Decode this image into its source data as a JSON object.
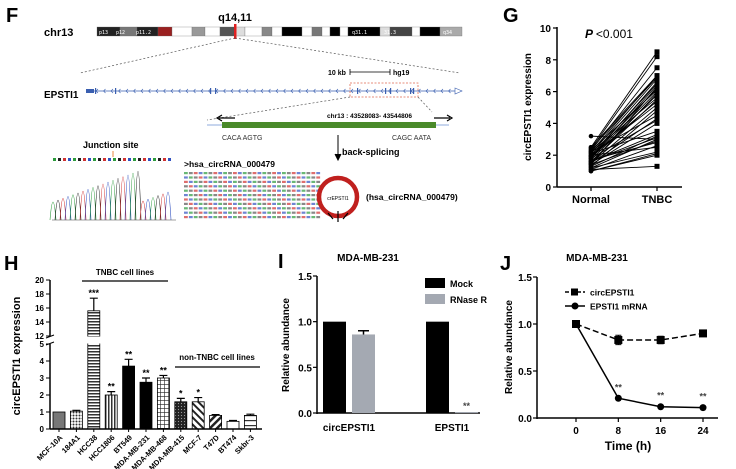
{
  "panel_labels": {
    "f": "F",
    "g": "G",
    "h": "H",
    "i": "I",
    "j": "J"
  },
  "panel_f": {
    "chrom_label": "chr13",
    "locus": "q14,11",
    "bands": [
      "p13",
      "p12",
      "p11.2",
      "q31.1",
      "31.3",
      "q34"
    ],
    "gene": "EPSTI1",
    "scale_label": "10 kb",
    "assembly": "hg19",
    "coords": "chr13 : 43528083- 43544806",
    "left_junction": "CACA AGTG",
    "right_junction": "CAGC AATA",
    "back_splicing": "back-splicing",
    "junction_site": "Junction site",
    "seq_header": ">hsa_circRNA_000479",
    "circ_label": "crEPSTI1",
    "circ_id": "(hsa_circRNA_000479)",
    "colors": {
      "exon": "#4a8a2a",
      "gene": "#3a5fb0",
      "circ": "#c0201e",
      "locus": "#e02020"
    }
  },
  "chart_data": [
    {
      "id": "G",
      "type": "paired-scatter",
      "title": "P <0.001",
      "ylabel": "circEPSTI1 expression",
      "categories": [
        "Normal",
        "TNBC"
      ],
      "ylim": [
        0,
        10
      ],
      "yticks": [
        "0",
        "2",
        "4",
        "6",
        "8",
        "10"
      ],
      "normal": [
        1.0,
        1.1,
        1.2,
        1.3,
        1.4,
        1.5,
        1.5,
        1.6,
        1.7,
        1.8,
        1.9,
        2.0,
        2.1,
        2.2,
        2.3,
        2.4,
        2.5,
        1.2,
        1.6,
        1.8,
        2.0,
        2.2,
        1.4,
        1.9,
        2.4,
        1.1,
        1.7,
        2.1,
        3.2,
        1.3,
        1.5,
        2.3,
        1.8,
        2.0,
        1.6,
        1.0,
        2.5,
        1.9,
        1.4,
        2.2
      ],
      "tnbc": [
        2.0,
        2.6,
        3.0,
        3.2,
        4.0,
        4.3,
        5.0,
        5.5,
        5.8,
        6.0,
        6.2,
        6.5,
        6.8,
        7.0,
        7.5,
        8.2,
        8.5,
        2.2,
        3.1,
        4.2,
        5.2,
        5.6,
        6.3,
        6.6,
        6.9,
        1.3,
        2.8,
        3.5,
        3.0,
        4.8,
        5.9,
        6.1,
        6.4,
        2.5,
        3.3,
        2.1,
        7.0,
        5.4,
        2.9,
        4.5
      ]
    },
    {
      "id": "H",
      "type": "bar",
      "ylabel": "circEPSTI1 expression",
      "categories": [
        "MCF-10A",
        "184A1",
        "HCC38",
        "HCC1806",
        "BT549",
        "MDA-MB-231",
        "MDA-MB-468",
        "MDA-MB-415",
        "MCF-7",
        "T47D",
        "BT474",
        "Skbr-3"
      ],
      "values": [
        1.0,
        1.05,
        15.6,
        2.0,
        3.7,
        2.75,
        3.0,
        1.6,
        1.6,
        0.8,
        0.45,
        0.8
      ],
      "errors": [
        0,
        0.05,
        1.8,
        0.2,
        0.4,
        0.25,
        0.15,
        0.2,
        0.25,
        0.05,
        0.05,
        0.07
      ],
      "significance": [
        "",
        "",
        "***",
        "**",
        "**",
        "**",
        "**",
        "*",
        "*",
        "",
        "",
        ""
      ],
      "yticks_lower": [
        "0",
        "1",
        "2",
        "3",
        "4",
        "5"
      ],
      "yticks_upper": [
        "12",
        "14",
        "16",
        "18",
        "20"
      ],
      "ylim": [
        0,
        20
      ],
      "axis_break": [
        5,
        12
      ],
      "group_labels": {
        "tnbc": "TNBC cell lines",
        "non_tnbc": "non-TNBC cell lines"
      }
    },
    {
      "id": "I",
      "type": "bar",
      "title": "MDA-MB-231",
      "ylabel": "Relative abundance",
      "categories": [
        "circEPSTI1",
        "EPSTI1"
      ],
      "series": [
        {
          "name": "Mock",
          "values": [
            1.0,
            1.0
          ],
          "errors": [
            0,
            0
          ],
          "color": "#000000"
        },
        {
          "name": "RNase R",
          "values": [
            0.86,
            0.01
          ],
          "errors": [
            0.04,
            0
          ],
          "color": "#a4a9b2"
        }
      ],
      "significance": [
        "",
        "**"
      ],
      "ylim": [
        0,
        1.5
      ],
      "yticks": [
        "0.0",
        "0.5",
        "1.0",
        "1.5"
      ],
      "legend": "top-right"
    },
    {
      "id": "J",
      "type": "line",
      "title": "MDA-MB-231",
      "xlabel": "Time (h)",
      "ylabel": "Relative abundance",
      "x": [
        0,
        8,
        16,
        24
      ],
      "xticks": [
        "0",
        "8",
        "16",
        "24"
      ],
      "series": [
        {
          "name": "circEPSTI1",
          "values": [
            1.0,
            0.83,
            0.83,
            0.9
          ],
          "errors": [
            0,
            0.05,
            0.04,
            0.03
          ],
          "style": "dashed",
          "marker": "square"
        },
        {
          "name": "EPSTI1 mRNA",
          "values": [
            1.0,
            0.21,
            0.12,
            0.11
          ],
          "errors": [
            0,
            0,
            0,
            0
          ],
          "style": "solid",
          "marker": "circle"
        }
      ],
      "significance": [
        "",
        "**",
        "**",
        "**"
      ],
      "ylim": [
        0,
        1.5
      ],
      "yticks": [
        "0.0",
        "0.5",
        "1.0",
        "1.5"
      ],
      "legend": "top-left"
    }
  ]
}
